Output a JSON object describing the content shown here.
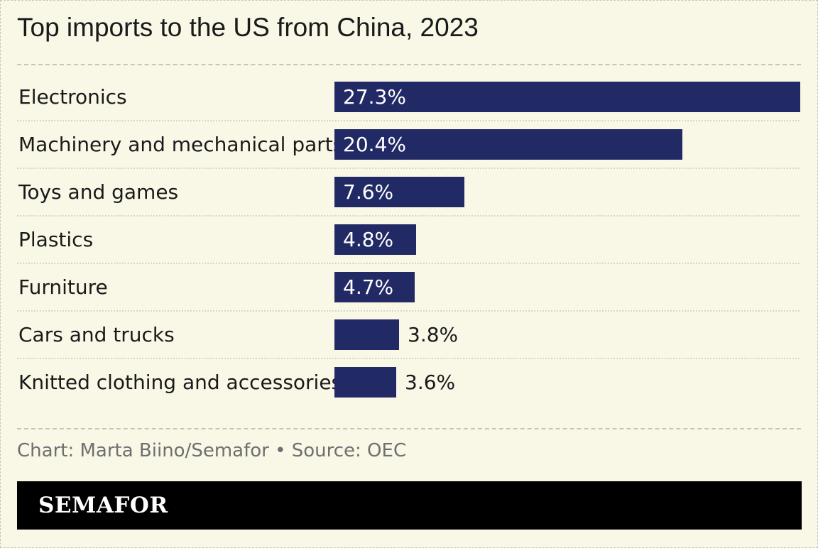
{
  "title": "Top imports to the US from China, 2023",
  "source": "Chart: Marta Biino/Semafor • Source: OEC",
  "brand": "SEMAFOR",
  "colors": {
    "bar": "#222a66",
    "background": "#f9f7e6",
    "label": "#1a1a1a"
  },
  "chart_data": {
    "type": "bar",
    "orientation": "horizontal",
    "title": "Top imports to the US from China, 2023",
    "categories": [
      "Electronics",
      "Machinery and mechanical parts",
      "Toys and games",
      "Plastics",
      "Furniture",
      "Cars and trucks",
      "Knitted clothing and accessories"
    ],
    "values": [
      27.3,
      20.4,
      7.6,
      4.8,
      4.7,
      3.8,
      3.6
    ],
    "labels": [
      "27.3%",
      "20.4%",
      "7.6%",
      "4.8%",
      "4.7%",
      "3.8%",
      "3.6%"
    ],
    "unit": "%",
    "xlim": [
      0,
      27.3
    ],
    "xlabel": "",
    "ylabel": ""
  }
}
